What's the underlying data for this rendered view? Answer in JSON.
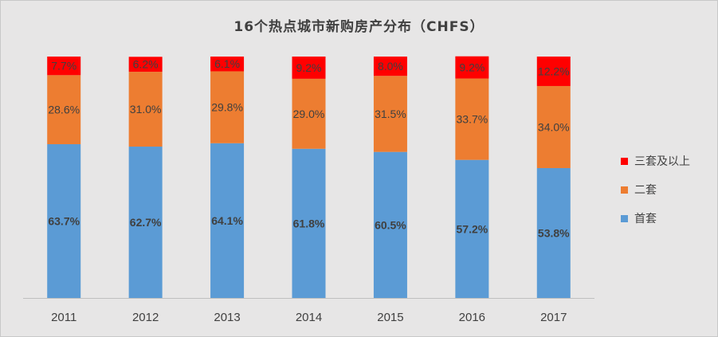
{
  "chart_data": {
    "type": "bar",
    "stacked": true,
    "title": "16个热点城市新购房产分布（CHFS）",
    "categories": [
      "2011",
      "2012",
      "2013",
      "2014",
      "2015",
      "2016",
      "2017"
    ],
    "series": [
      {
        "name": "首套",
        "color": "#5b9bd5",
        "values": [
          63.7,
          62.7,
          64.1,
          61.8,
          60.5,
          57.2,
          53.8
        ],
        "labels": [
          "63.7%",
          "62.7%",
          "64.1%",
          "61.8%",
          "60.5%",
          "57.2%",
          "53.8%"
        ]
      },
      {
        "name": "二套",
        "color": "#ed7d31",
        "values": [
          28.6,
          31.0,
          29.8,
          29.0,
          31.5,
          33.7,
          34.0
        ],
        "labels": [
          "28.6%",
          "31.0%",
          "29.8%",
          "29.0%",
          "31.5%",
          "33.7%",
          "34.0%"
        ]
      },
      {
        "name": "三套及以上",
        "color": "#ff0000",
        "values": [
          7.7,
          6.2,
          6.1,
          9.2,
          8.0,
          9.2,
          12.2
        ],
        "labels": [
          "7.7%",
          "6.2%",
          "6.1%",
          "9.2%",
          "8.0%",
          "9.2%",
          "12.2%"
        ]
      }
    ],
    "ylim": [
      0,
      100
    ],
    "grid": false,
    "legend_position": "right",
    "legend_order": [
      "三套及以上",
      "二套",
      "首套"
    ]
  }
}
